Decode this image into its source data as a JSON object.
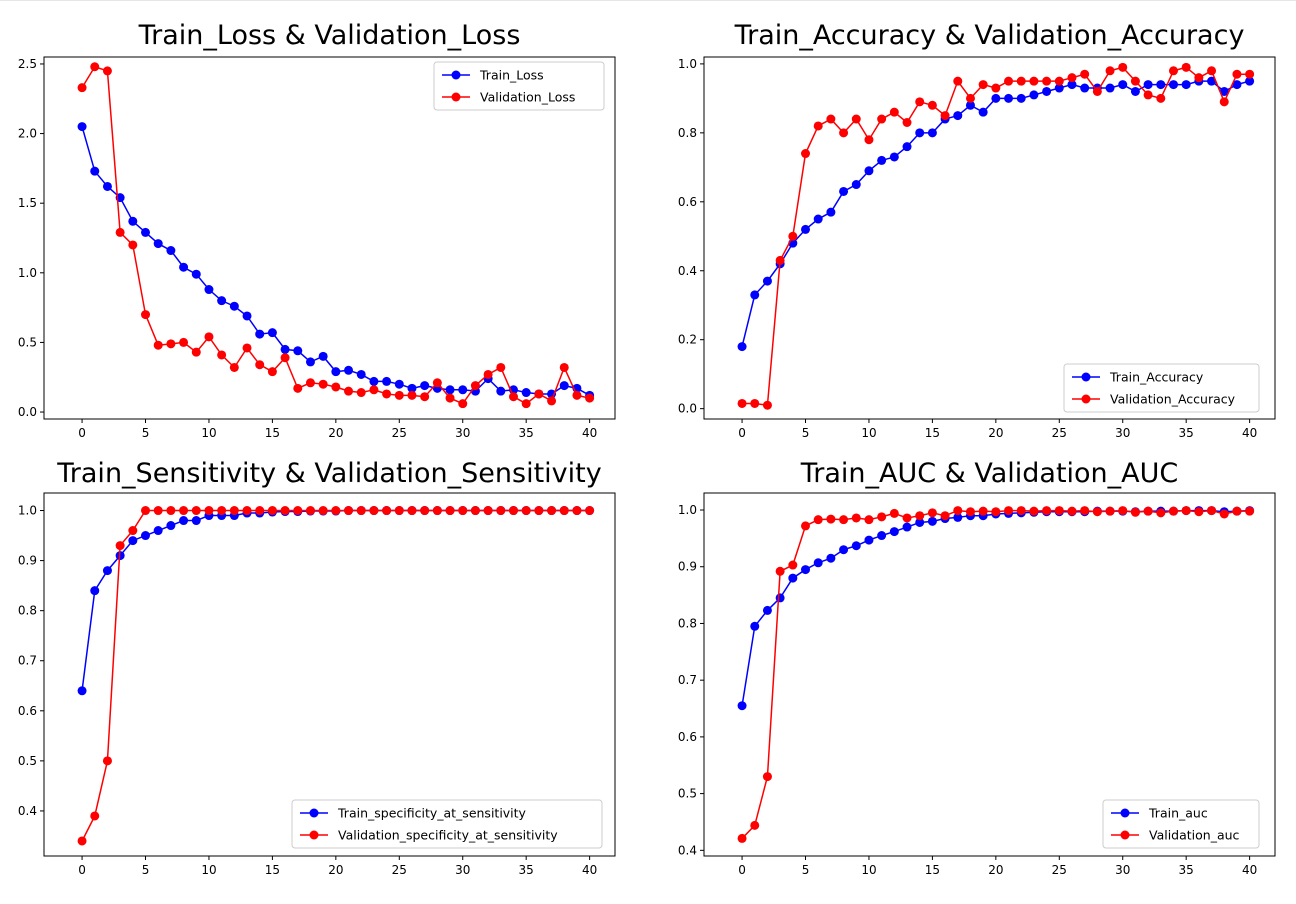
{
  "chart_data": [
    {
      "type": "line",
      "title": "Train_Loss & Validation_Loss",
      "xlabel": "",
      "ylabel": "",
      "xlim": [
        -3,
        42
      ],
      "ylim": [
        -0.05,
        2.55
      ],
      "xticks": [
        0,
        5,
        10,
        15,
        20,
        25,
        30,
        35,
        40
      ],
      "xtick_labels": [
        "0",
        "5",
        "10",
        "15",
        "20",
        "25",
        "30",
        "35",
        "40"
      ],
      "yticks": [
        0.0,
        0.5,
        1.0,
        1.5,
        2.0,
        2.5
      ],
      "ytick_labels": [
        "0.0",
        "0.5",
        "1.0",
        "1.5",
        "2.0",
        "2.5"
      ],
      "grid": false,
      "legend_position": "top-right",
      "x": [
        0,
        1,
        2,
        3,
        4,
        5,
        6,
        7,
        8,
        9,
        10,
        11,
        12,
        13,
        14,
        15,
        16,
        17,
        18,
        19,
        20,
        21,
        22,
        23,
        24,
        25,
        26,
        27,
        28,
        29,
        30,
        31,
        32,
        33,
        34,
        35,
        36,
        37,
        38,
        39,
        40
      ],
      "series": [
        {
          "name": "Train_Loss",
          "color": "#0000ff",
          "values": [
            2.05,
            1.73,
            1.62,
            1.54,
            1.37,
            1.29,
            1.21,
            1.16,
            1.04,
            0.99,
            0.88,
            0.8,
            0.76,
            0.69,
            0.56,
            0.57,
            0.45,
            0.44,
            0.36,
            0.4,
            0.29,
            0.3,
            0.27,
            0.22,
            0.22,
            0.2,
            0.17,
            0.19,
            0.17,
            0.16,
            0.16,
            0.15,
            0.24,
            0.15,
            0.16,
            0.14,
            0.13,
            0.13,
            0.19,
            0.17,
            0.12
          ]
        },
        {
          "name": "Validation_Loss",
          "color": "#ff0000",
          "values": [
            2.33,
            2.48,
            2.45,
            1.29,
            1.2,
            0.7,
            0.48,
            0.49,
            0.5,
            0.43,
            0.54,
            0.41,
            0.32,
            0.46,
            0.34,
            0.29,
            0.39,
            0.17,
            0.21,
            0.2,
            0.18,
            0.15,
            0.14,
            0.16,
            0.13,
            0.12,
            0.12,
            0.11,
            0.21,
            0.1,
            0.06,
            0.19,
            0.27,
            0.32,
            0.11,
            0.06,
            0.13,
            0.08,
            0.32,
            0.12,
            0.1
          ]
        }
      ]
    },
    {
      "type": "line",
      "title": "Train_Accuracy & Validation_Accuracy",
      "xlabel": "",
      "ylabel": "",
      "xlim": [
        -3,
        42
      ],
      "ylim": [
        -0.03,
        1.02
      ],
      "xticks": [
        0,
        5,
        10,
        15,
        20,
        25,
        30,
        35,
        40
      ],
      "xtick_labels": [
        "0",
        "5",
        "10",
        "15",
        "20",
        "25",
        "30",
        "35",
        "40"
      ],
      "yticks": [
        0.0,
        0.2,
        0.4,
        0.6,
        0.8,
        1.0
      ],
      "ytick_labels": [
        "0.0",
        "0.2",
        "0.4",
        "0.6",
        "0.8",
        "1.0"
      ],
      "grid": false,
      "legend_position": "bottom-right",
      "x": [
        0,
        1,
        2,
        3,
        4,
        5,
        6,
        7,
        8,
        9,
        10,
        11,
        12,
        13,
        14,
        15,
        16,
        17,
        18,
        19,
        20,
        21,
        22,
        23,
        24,
        25,
        26,
        27,
        28,
        29,
        30,
        31,
        32,
        33,
        34,
        35,
        36,
        37,
        38,
        39,
        40
      ],
      "series": [
        {
          "name": "Train_Accuracy",
          "color": "#0000ff",
          "values": [
            0.18,
            0.33,
            0.37,
            0.42,
            0.48,
            0.52,
            0.55,
            0.57,
            0.63,
            0.65,
            0.69,
            0.72,
            0.73,
            0.76,
            0.8,
            0.8,
            0.84,
            0.85,
            0.88,
            0.86,
            0.9,
            0.9,
            0.9,
            0.91,
            0.92,
            0.93,
            0.94,
            0.93,
            0.93,
            0.93,
            0.94,
            0.92,
            0.94,
            0.94,
            0.94,
            0.94,
            0.95,
            0.95,
            0.92,
            0.94,
            0.95
          ]
        },
        {
          "name": "Validation_Accuracy",
          "color": "#ff0000",
          "values": [
            0.015,
            0.015,
            0.01,
            0.43,
            0.5,
            0.74,
            0.82,
            0.84,
            0.8,
            0.84,
            0.78,
            0.84,
            0.86,
            0.83,
            0.89,
            0.88,
            0.85,
            0.95,
            0.9,
            0.94,
            0.93,
            0.95,
            0.95,
            0.95,
            0.95,
            0.95,
            0.96,
            0.97,
            0.92,
            0.98,
            0.99,
            0.95,
            0.91,
            0.9,
            0.98,
            0.99,
            0.96,
            0.98,
            0.89,
            0.97,
            0.97
          ]
        }
      ]
    },
    {
      "type": "line",
      "title": "Train_Sensitivity & Validation_Sensitivity",
      "xlabel": "",
      "ylabel": "",
      "xlim": [
        -3,
        42
      ],
      "ylim": [
        0.31,
        1.035
      ],
      "xticks": [
        0,
        5,
        10,
        15,
        20,
        25,
        30,
        35,
        40
      ],
      "xtick_labels": [
        "0",
        "5",
        "10",
        "15",
        "20",
        "25",
        "30",
        "35",
        "40"
      ],
      "yticks": [
        0.4,
        0.5,
        0.6,
        0.7,
        0.8,
        0.9,
        1.0
      ],
      "ytick_labels": [
        "0.4",
        "0.5",
        "0.6",
        "0.7",
        "0.8",
        "0.9",
        "1.0"
      ],
      "grid": false,
      "legend_position": "bottom-right",
      "x": [
        0,
        1,
        2,
        3,
        4,
        5,
        6,
        7,
        8,
        9,
        10,
        11,
        12,
        13,
        14,
        15,
        16,
        17,
        18,
        19,
        20,
        21,
        22,
        23,
        24,
        25,
        26,
        27,
        28,
        29,
        30,
        31,
        32,
        33,
        34,
        35,
        36,
        37,
        38,
        39,
        40
      ],
      "series": [
        {
          "name": "Train_specificity_at_sensitivity",
          "color": "#0000ff",
          "values": [
            0.64,
            0.84,
            0.88,
            0.91,
            0.94,
            0.95,
            0.96,
            0.97,
            0.98,
            0.98,
            0.99,
            0.99,
            0.99,
            0.995,
            0.995,
            0.997,
            0.998,
            0.998,
            0.999,
            0.999,
            0.999,
            1.0,
            1.0,
            1.0,
            1.0,
            1.0,
            1.0,
            1.0,
            1.0,
            1.0,
            1.0,
            1.0,
            1.0,
            1.0,
            1.0,
            1.0,
            1.0,
            1.0,
            1.0,
            1.0,
            1.0
          ]
        },
        {
          "name": "Validation_specificity_at_sensitivity",
          "color": "#ff0000",
          "values": [
            0.34,
            0.39,
            0.5,
            0.93,
            0.96,
            1.0,
            1.0,
            1.0,
            1.0,
            1.0,
            1.0,
            1.0,
            1.0,
            1.0,
            1.0,
            1.0,
            1.0,
            1.0,
            1.0,
            1.0,
            1.0,
            1.0,
            1.0,
            1.0,
            1.0,
            1.0,
            1.0,
            1.0,
            1.0,
            1.0,
            1.0,
            1.0,
            1.0,
            1.0,
            1.0,
            1.0,
            1.0,
            1.0,
            1.0,
            1.0,
            1.0
          ]
        }
      ]
    },
    {
      "type": "line",
      "title": "Train_AUC & Validation_AUC",
      "xlabel": "",
      "ylabel": "",
      "xlim": [
        -3,
        42
      ],
      "ylim": [
        0.39,
        1.03
      ],
      "xticks": [
        0,
        5,
        10,
        15,
        20,
        25,
        30,
        35,
        40
      ],
      "xtick_labels": [
        "0",
        "5",
        "10",
        "15",
        "20",
        "25",
        "30",
        "35",
        "40"
      ],
      "yticks": [
        0.4,
        0.5,
        0.6,
        0.7,
        0.8,
        0.9,
        1.0
      ],
      "ytick_labels": [
        "0.4",
        "0.5",
        "0.6",
        "0.7",
        "0.8",
        "0.9",
        "1.0"
      ],
      "grid": false,
      "legend_position": "bottom-right",
      "x": [
        0,
        1,
        2,
        3,
        4,
        5,
        6,
        7,
        8,
        9,
        10,
        11,
        12,
        13,
        14,
        15,
        16,
        17,
        18,
        19,
        20,
        21,
        22,
        23,
        24,
        25,
        26,
        27,
        28,
        29,
        30,
        31,
        32,
        33,
        34,
        35,
        36,
        37,
        38,
        39,
        40
      ],
      "series": [
        {
          "name": "Train_auc",
          "color": "#0000ff",
          "values": [
            0.655,
            0.795,
            0.823,
            0.845,
            0.88,
            0.895,
            0.907,
            0.915,
            0.93,
            0.937,
            0.947,
            0.955,
            0.962,
            0.97,
            0.978,
            0.98,
            0.985,
            0.987,
            0.99,
            0.99,
            0.993,
            0.994,
            0.995,
            0.996,
            0.997,
            0.997,
            0.997,
            0.997,
            0.998,
            0.998,
            0.998,
            0.997,
            0.998,
            0.998,
            0.998,
            0.999,
            0.999,
            0.999,
            0.997,
            0.998,
            0.999
          ]
        },
        {
          "name": "Validation_auc",
          "color": "#ff0000",
          "values": [
            0.421,
            0.444,
            0.53,
            0.892,
            0.903,
            0.972,
            0.983,
            0.984,
            0.983,
            0.986,
            0.983,
            0.988,
            0.994,
            0.986,
            0.99,
            0.995,
            0.99,
            0.999,
            0.997,
            0.998,
            0.997,
            0.999,
            0.999,
            0.998,
            0.999,
            0.999,
            0.998,
            0.999,
            0.997,
            0.998,
            0.999,
            0.996,
            0.998,
            0.995,
            0.998,
            0.999,
            0.997,
            0.999,
            0.993,
            0.998,
            0.998
          ]
        }
      ]
    }
  ]
}
